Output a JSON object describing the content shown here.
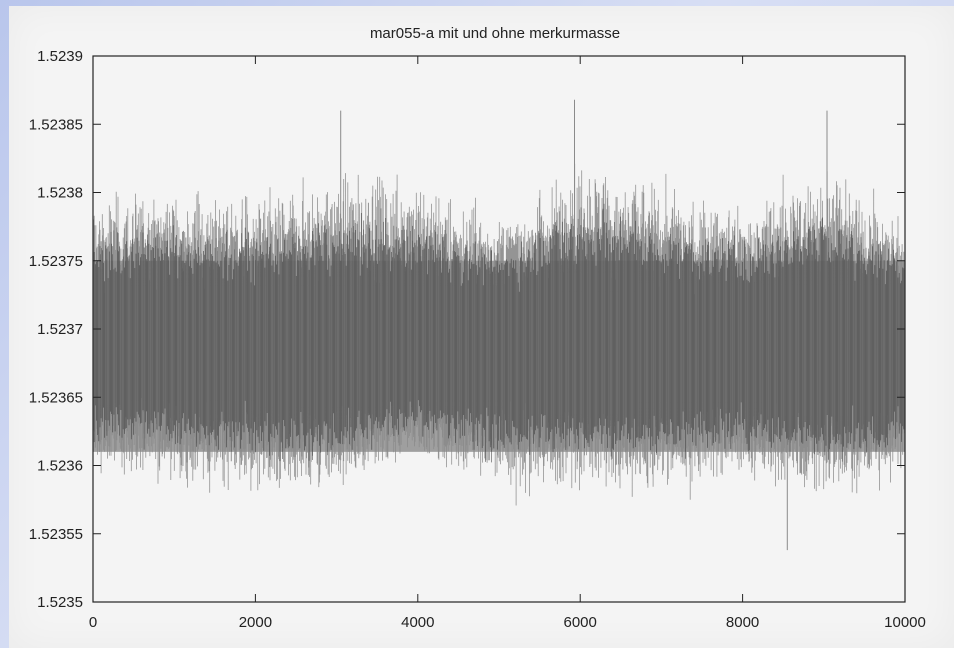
{
  "chart_data": {
    "type": "line",
    "title": "mar055-a mit und ohne merkurmasse",
    "xlabel": "",
    "ylabel": "",
    "xlim": [
      0,
      10000
    ],
    "ylim": [
      1.5235,
      1.5239
    ],
    "x_ticks": [
      0,
      2000,
      4000,
      6000,
      8000,
      10000
    ],
    "x_tick_labels": [
      "0",
      "2000",
      "4000",
      "6000",
      "8000",
      "10000"
    ],
    "y_ticks": [
      1.5235,
      1.52355,
      1.5236,
      1.52365,
      1.5237,
      1.52375,
      1.5238,
      1.52385,
      1.5239
    ],
    "y_tick_labels": [
      "1.5235",
      "1.52355",
      "1.5236",
      "1.52365",
      "1.5237",
      "1.52375",
      "1.5238",
      "1.52385",
      "1.5239"
    ],
    "grid": false,
    "legend": "none",
    "series": [
      {
        "color": "#8a8a8a",
        "x_start": 0,
        "x_end": 10000,
        "band_center": 1.523685,
        "band_low": 1.52361,
        "band_high": 1.52375,
        "peak_max": 1.523868,
        "peak_min": 1.523538,
        "envelope_x": [
          0,
          1000,
          2000,
          3000,
          4000,
          5000,
          6000,
          7000,
          8000,
          9000,
          10000
        ],
        "envelope_upper": [
          1.52383,
          1.52384,
          1.52383,
          1.52385,
          1.52385,
          1.52381,
          1.523868,
          1.52384,
          1.52382,
          1.52386,
          1.52381
        ],
        "envelope_lower": [
          1.52357,
          1.52356,
          1.52355,
          1.52355,
          1.52358,
          1.52355,
          1.52355,
          1.52355,
          1.52356,
          1.52354,
          1.52356
        ]
      },
      {
        "color": "#3a3a3a",
        "x_start": 0,
        "x_end": 10000,
        "band_center": 1.523685,
        "band_low": 1.52359,
        "band_high": 1.52378
      }
    ]
  },
  "colors": {
    "background": "#f4f4f4",
    "band": "#9a9a9a",
    "axis": "#222222"
  }
}
